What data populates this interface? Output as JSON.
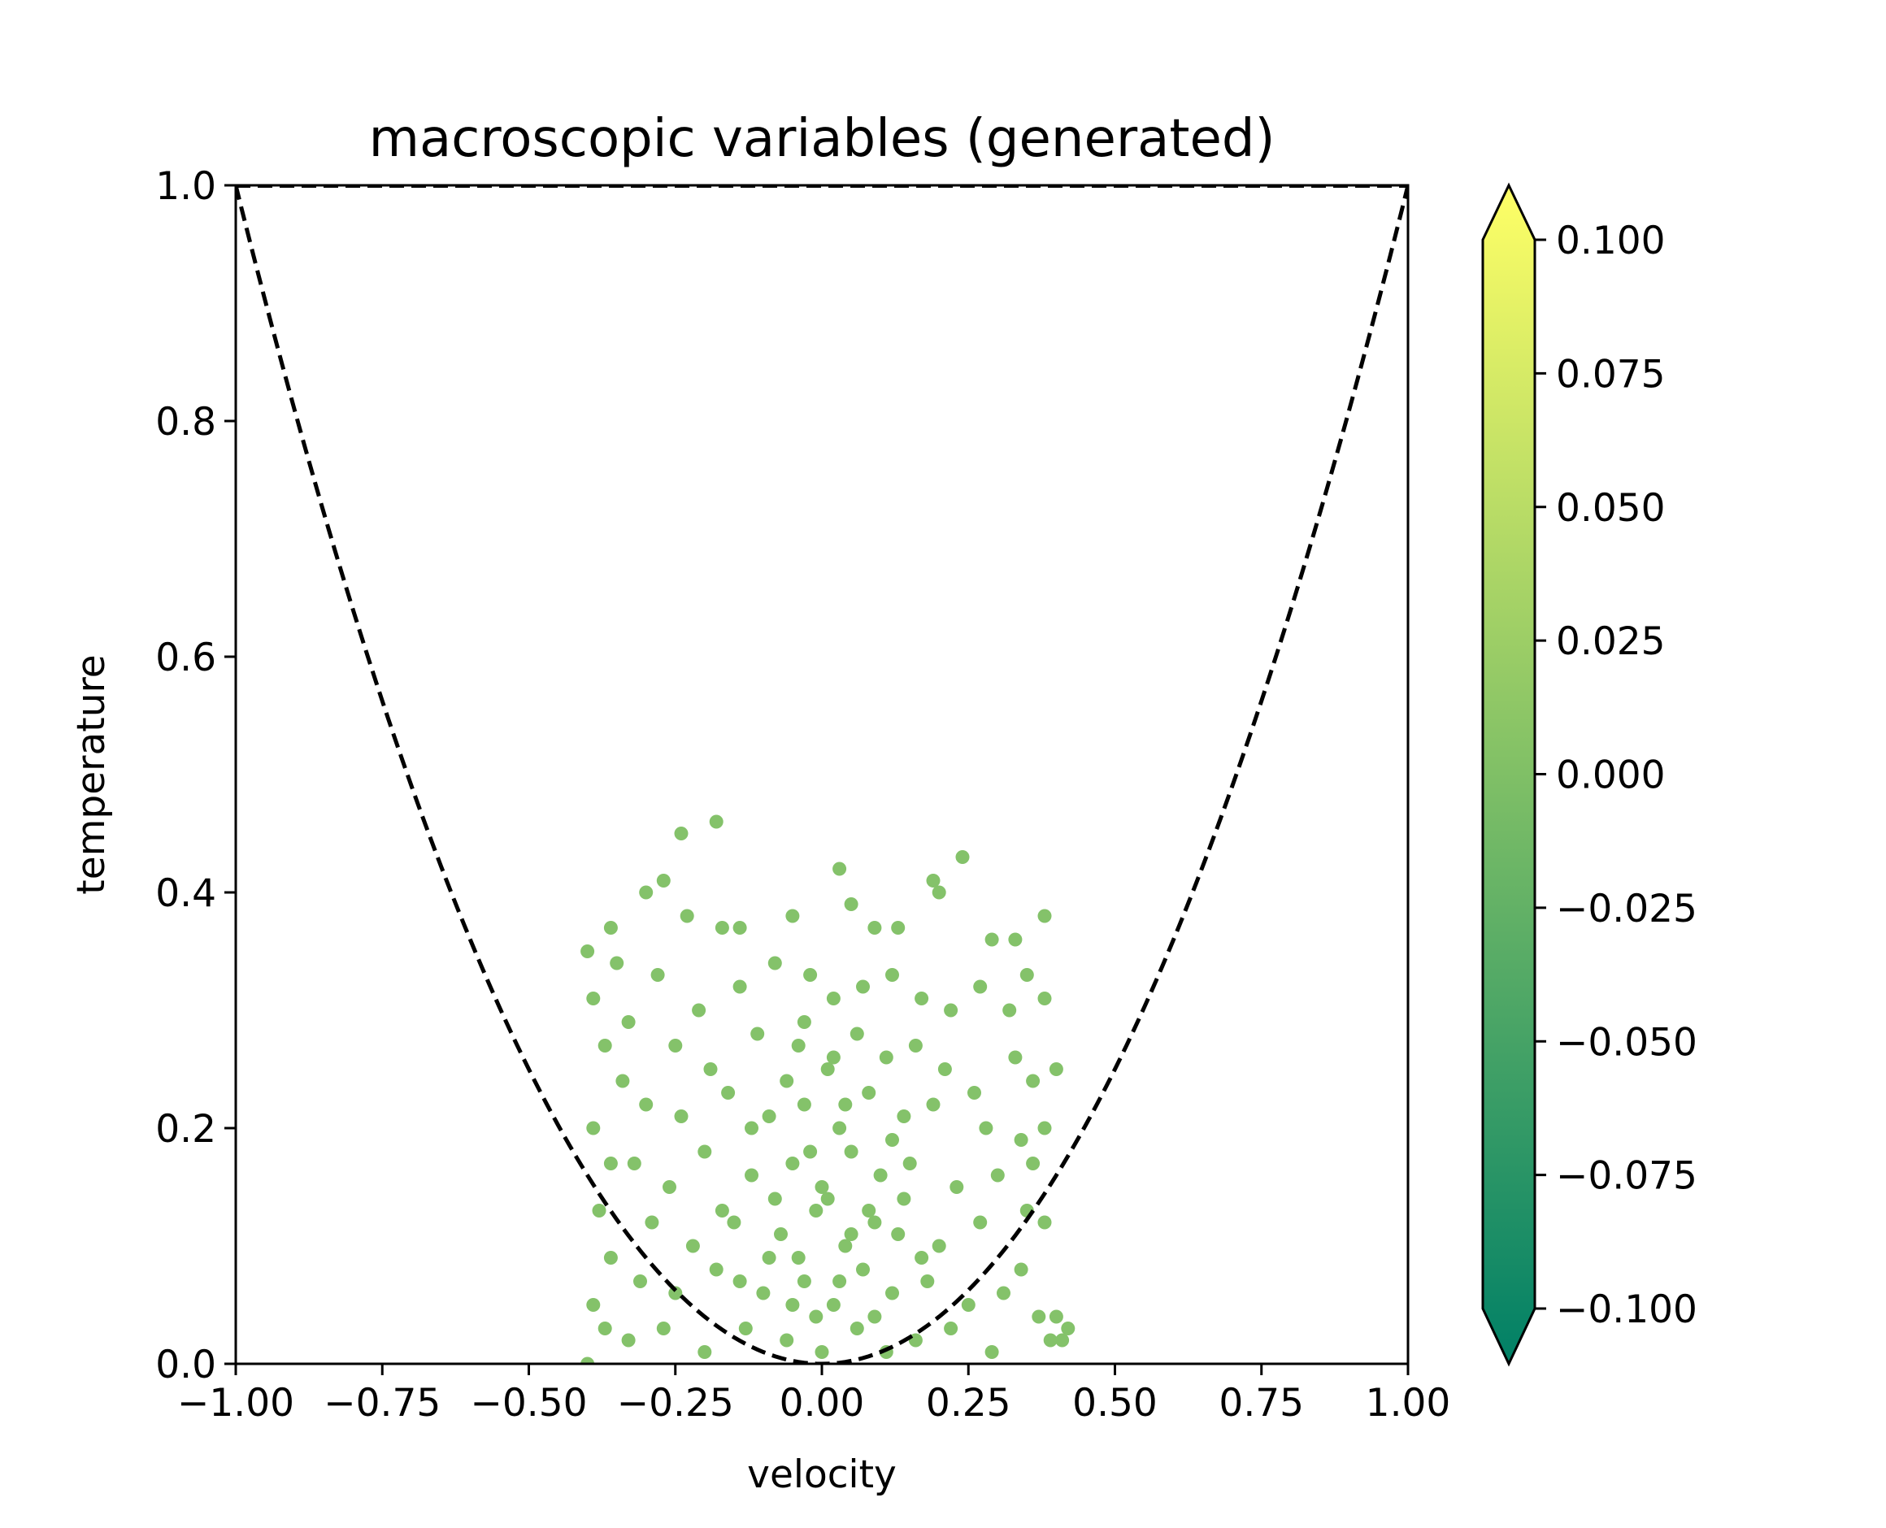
{
  "chart_data": {
    "type": "scatter",
    "title": "macroscopic variables (generated)",
    "xlabel": "velocity",
    "ylabel": "temperature",
    "xlim": [
      -1.0,
      1.0
    ],
    "ylim": [
      0.0,
      1.0
    ],
    "xticks": [
      "−1.00",
      "−0.75",
      "−0.50",
      "−0.25",
      "0.00",
      "0.25",
      "0.50",
      "0.75",
      "1.00"
    ],
    "yticks": [
      "0.0",
      "0.2",
      "0.4",
      "0.6",
      "0.8",
      "1.0"
    ],
    "grid": false,
    "point_color": "#84c26a",
    "curve": {
      "style": "dashed",
      "color": "#000000",
      "equation": "temperature = velocity^2"
    },
    "series": [
      {
        "points": [
          [
            -0.18,
            0.46
          ],
          [
            -0.24,
            0.45
          ],
          [
            0.03,
            0.42
          ],
          [
            0.24,
            0.43
          ],
          [
            -0.27,
            0.41
          ],
          [
            -0.3,
            0.4
          ],
          [
            0.19,
            0.41
          ],
          [
            0.2,
            0.4
          ],
          [
            0.38,
            0.38
          ],
          [
            -0.36,
            0.37
          ],
          [
            -0.23,
            0.38
          ],
          [
            -0.17,
            0.37
          ],
          [
            -0.14,
            0.37
          ],
          [
            -0.05,
            0.38
          ],
          [
            0.05,
            0.39
          ],
          [
            0.09,
            0.37
          ],
          [
            0.13,
            0.37
          ],
          [
            0.29,
            0.36
          ],
          [
            0.33,
            0.36
          ],
          [
            -0.4,
            0.35
          ],
          [
            -0.35,
            0.34
          ],
          [
            0.35,
            0.33
          ],
          [
            0.38,
            0.31
          ],
          [
            -0.39,
            0.31
          ],
          [
            -0.33,
            0.29
          ],
          [
            -0.28,
            0.33
          ],
          [
            0.27,
            0.32
          ],
          [
            0.32,
            0.3
          ],
          [
            -0.37,
            0.27
          ],
          [
            -0.34,
            0.24
          ],
          [
            0.33,
            0.26
          ],
          [
            0.36,
            0.24
          ],
          [
            0.4,
            0.25
          ],
          [
            -0.39,
            0.2
          ],
          [
            0.34,
            0.19
          ],
          [
            0.38,
            0.2
          ],
          [
            -0.36,
            0.17
          ],
          [
            0.36,
            0.17
          ],
          [
            -0.38,
            0.13
          ],
          [
            0.35,
            0.13
          ],
          [
            0.38,
            0.12
          ],
          [
            -0.36,
            0.09
          ],
          [
            0.34,
            0.08
          ],
          [
            -0.39,
            0.05
          ],
          [
            -0.37,
            0.03
          ],
          [
            0.37,
            0.04
          ],
          [
            0.4,
            0.04
          ],
          [
            0.41,
            0.02
          ],
          [
            0.42,
            0.03
          ],
          [
            -0.4,
            0.0
          ],
          [
            0.39,
            0.02
          ],
          [
            -0.21,
            0.3
          ],
          [
            -0.14,
            0.32
          ],
          [
            -0.08,
            0.34
          ],
          [
            -0.02,
            0.33
          ],
          [
            0.02,
            0.31
          ],
          [
            0.07,
            0.32
          ],
          [
            0.12,
            0.33
          ],
          [
            0.17,
            0.31
          ],
          [
            0.22,
            0.3
          ],
          [
            -0.25,
            0.27
          ],
          [
            -0.19,
            0.25
          ],
          [
            -0.11,
            0.28
          ],
          [
            -0.04,
            0.27
          ],
          [
            0.01,
            0.25
          ],
          [
            0.06,
            0.28
          ],
          [
            0.11,
            0.26
          ],
          [
            0.16,
            0.27
          ],
          [
            0.21,
            0.25
          ],
          [
            0.26,
            0.23
          ],
          [
            -0.3,
            0.22
          ],
          [
            -0.24,
            0.21
          ],
          [
            -0.16,
            0.23
          ],
          [
            -0.09,
            0.21
          ],
          [
            -0.03,
            0.22
          ],
          [
            0.03,
            0.2
          ],
          [
            0.08,
            0.23
          ],
          [
            0.14,
            0.21
          ],
          [
            0.19,
            0.22
          ],
          [
            0.28,
            0.2
          ],
          [
            -0.32,
            0.17
          ],
          [
            -0.26,
            0.15
          ],
          [
            -0.2,
            0.18
          ],
          [
            -0.12,
            0.16
          ],
          [
            -0.05,
            0.17
          ],
          [
            0.0,
            0.15
          ],
          [
            0.05,
            0.18
          ],
          [
            0.1,
            0.16
          ],
          [
            0.15,
            0.17
          ],
          [
            0.23,
            0.15
          ],
          [
            0.3,
            0.16
          ],
          [
            -0.29,
            0.12
          ],
          [
            -0.22,
            0.1
          ],
          [
            -0.15,
            0.12
          ],
          [
            -0.07,
            0.11
          ],
          [
            -0.01,
            0.13
          ],
          [
            0.04,
            0.1
          ],
          [
            0.09,
            0.12
          ],
          [
            0.13,
            0.11
          ],
          [
            0.2,
            0.1
          ],
          [
            0.27,
            0.12
          ],
          [
            -0.31,
            0.07
          ],
          [
            -0.25,
            0.06
          ],
          [
            -0.18,
            0.08
          ],
          [
            -0.1,
            0.06
          ],
          [
            -0.03,
            0.07
          ],
          [
            0.02,
            0.05
          ],
          [
            0.07,
            0.08
          ],
          [
            0.12,
            0.06
          ],
          [
            0.18,
            0.07
          ],
          [
            0.25,
            0.05
          ],
          [
            0.31,
            0.06
          ],
          [
            -0.33,
            0.02
          ],
          [
            -0.27,
            0.03
          ],
          [
            -0.2,
            0.01
          ],
          [
            -0.13,
            0.03
          ],
          [
            -0.06,
            0.02
          ],
          [
            0.0,
            0.01
          ],
          [
            0.06,
            0.03
          ],
          [
            0.11,
            0.01
          ],
          [
            0.16,
            0.02
          ],
          [
            0.22,
            0.03
          ],
          [
            0.29,
            0.01
          ],
          [
            -0.02,
            0.18
          ],
          [
            0.01,
            0.14
          ],
          [
            -0.04,
            0.09
          ],
          [
            0.03,
            0.07
          ],
          [
            -0.01,
            0.04
          ],
          [
            0.04,
            0.22
          ],
          [
            -0.06,
            0.24
          ],
          [
            0.08,
            0.13
          ],
          [
            -0.08,
            0.14
          ],
          [
            0.02,
            0.26
          ],
          [
            -0.03,
            0.29
          ],
          [
            0.05,
            0.11
          ],
          [
            -0.05,
            0.05
          ],
          [
            0.09,
            0.04
          ],
          [
            -0.09,
            0.09
          ],
          [
            0.12,
            0.19
          ],
          [
            -0.12,
            0.2
          ],
          [
            0.14,
            0.14
          ],
          [
            -0.14,
            0.07
          ],
          [
            0.17,
            0.09
          ],
          [
            -0.17,
            0.13
          ]
        ]
      }
    ],
    "colorbar": {
      "colormap": "summer",
      "color_low": "#008066",
      "color_high": "#ffff66",
      "range": [
        -0.1,
        0.1
      ],
      "extend": "both",
      "ticks": [
        "0.100",
        "0.075",
        "0.050",
        "0.025",
        "0.000",
        "−0.025",
        "−0.050",
        "−0.075",
        "−0.100"
      ]
    }
  }
}
